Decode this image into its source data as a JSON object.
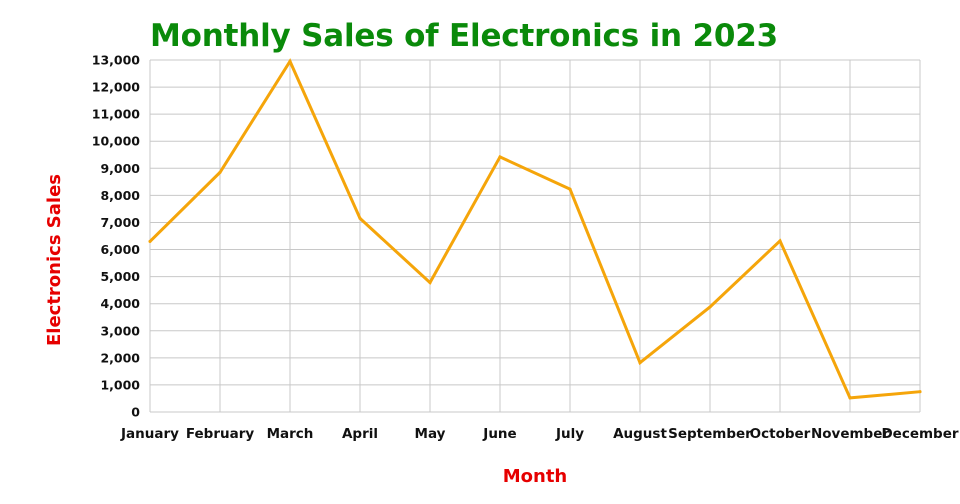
{
  "chart_data": {
    "type": "line",
    "title": "Monthly Sales of Electronics in 2023",
    "xlabel": "Month",
    "ylabel": "Electronics Sales",
    "categories": [
      "January",
      "February",
      "March",
      "April",
      "May",
      "June",
      "July",
      "August",
      "September",
      "October",
      "November",
      "December"
    ],
    "series": [
      {
        "values": [
          6300,
          8850,
          12950,
          7150,
          4780,
          9420,
          8230,
          1820,
          3880,
          6320,
          520,
          750
        ]
      }
    ],
    "ylim": [
      0,
      13000
    ],
    "yticks": [
      0,
      1000,
      2000,
      3000,
      4000,
      5000,
      6000,
      7000,
      8000,
      9000,
      10000,
      11000,
      12000,
      13000
    ],
    "ytick_labels": [
      "0",
      "1,000",
      "2,000",
      "3,000",
      "4,000",
      "5,000",
      "6,000",
      "7,000",
      "8,000",
      "9,000",
      "10,000",
      "11,000",
      "12,000",
      "13,000"
    ],
    "grid": true,
    "legend": "none",
    "colors": {
      "title": "#0a8a0a",
      "axis_labels": "#e60000",
      "line": "#f5a50a",
      "grid": "#c8c8c8",
      "ticks": "#111111"
    }
  }
}
